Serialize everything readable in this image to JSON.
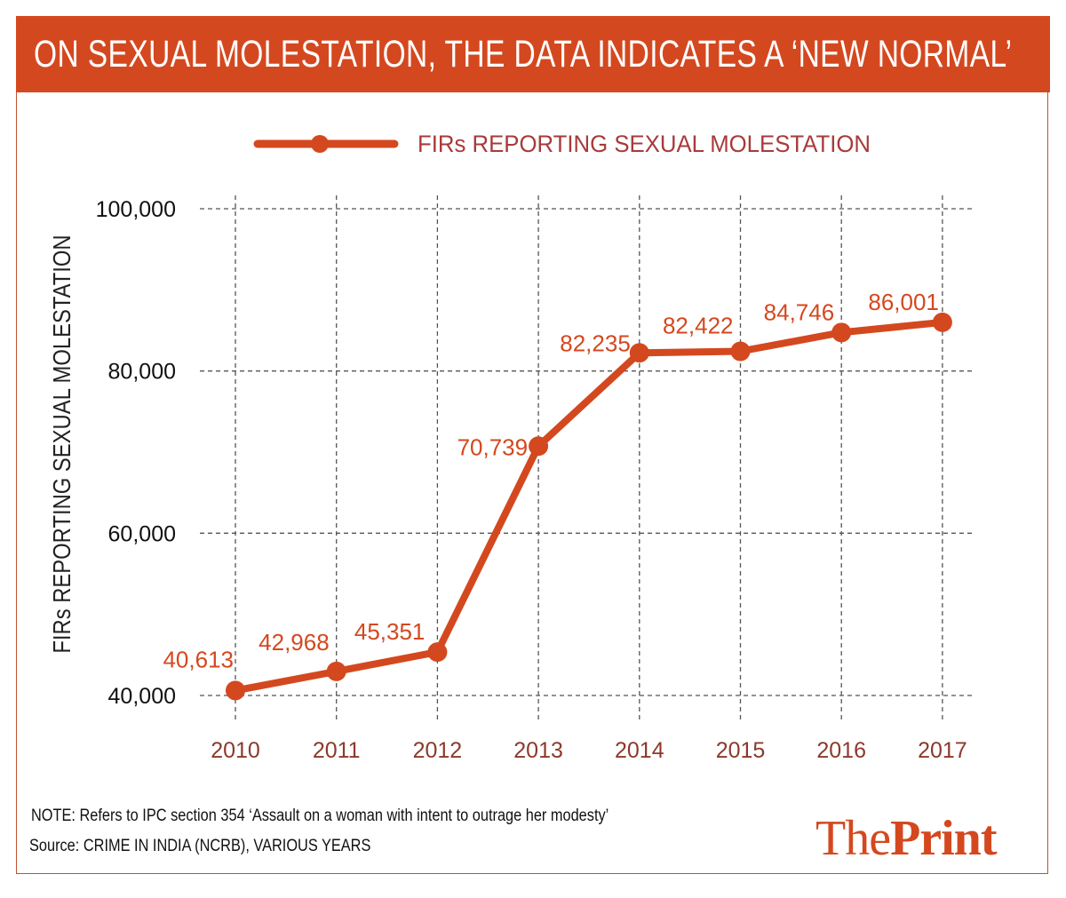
{
  "header": {
    "title": "ON SEXUAL MOLESTATION, THE DATA INDICATES A ‘NEW NORMAL’"
  },
  "colors": {
    "accent": "#d4481f",
    "legend_text": "#a83a3a",
    "year_text": "#8b3a2a",
    "grid": "#555555"
  },
  "chart_data": {
    "type": "line",
    "title": "ON SEXUAL MOLESTATION, THE DATA INDICATES A ‘NEW NORMAL’",
    "xlabel": "",
    "ylabel": "FIRs REPORTING SEXUAL MOLESTATION",
    "categories": [
      "2010",
      "2011",
      "2012",
      "2013",
      "2014",
      "2015",
      "2016",
      "2017"
    ],
    "series": [
      {
        "name": "FIRs REPORTING SEXUAL MOLESTATION",
        "values": [
          40613,
          42968,
          45351,
          70739,
          82235,
          82422,
          84746,
          86001
        ],
        "labels": [
          "40,613",
          "42,968",
          "45,351",
          "70,739",
          "82,235",
          "82,422",
          "84,746",
          "86,001"
        ]
      }
    ],
    "ylim": [
      40000,
      100000
    ],
    "yticks": [
      40000,
      60000,
      80000,
      100000
    ],
    "ytick_labels": [
      "40,000",
      "60,000",
      "80,000",
      "100,000"
    ],
    "grid": true,
    "legend": "top-center"
  },
  "footer": {
    "note": "NOTE: Refers to IPC section 354 ‘Assault on a woman with intent to outrage her modesty’",
    "source": "Source: CRIME IN INDIA (NCRB), VARIOUS YEARS",
    "logo": {
      "part1": "The",
      "part2": "Print"
    }
  }
}
